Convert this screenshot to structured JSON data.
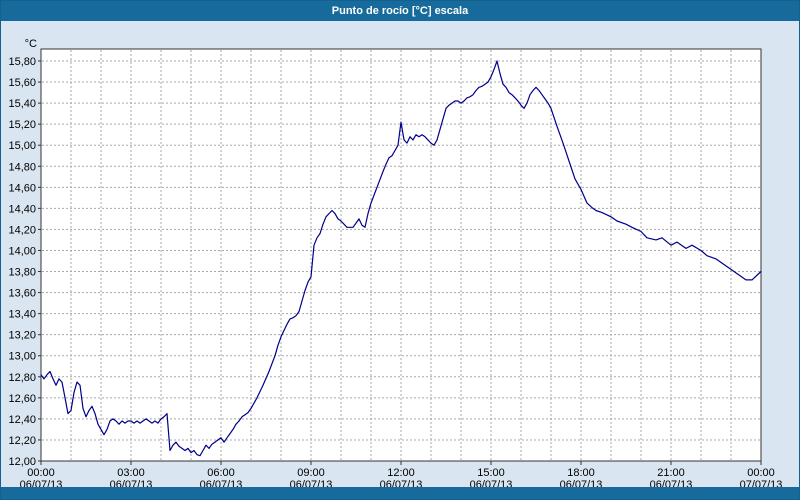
{
  "window": {
    "title": "Punto de rocío [°C] escala"
  },
  "colors": {
    "titlebar_bg": "#176b9c",
    "titlebar_text": "#ffffff",
    "chart_bg": "#d9e5f1",
    "plot_bg": "#ffffff",
    "grid": "#a8a8a8",
    "axis": "#333333",
    "series": "#00008b",
    "frame_border": "#14608f",
    "bottom_bar": "#176b9c"
  },
  "chart_data": {
    "type": "line",
    "title": "Punto de rocío [°C] escala",
    "ylabel": "°C",
    "xlabel": "",
    "ylim": [
      12.0,
      15.8
    ],
    "y_tick_step": 0.2,
    "y_tick_labels": [
      "12,00",
      "12,20",
      "12,40",
      "12,60",
      "12,80",
      "13,00",
      "13,20",
      "13,40",
      "13,60",
      "13,80",
      "14,00",
      "14,20",
      "14,40",
      "14,60",
      "14,80",
      "15,00",
      "15,20",
      "15,40",
      "15,60",
      "15,80"
    ],
    "xlim_hours": [
      0,
      24
    ],
    "grid": {
      "style": "dashed",
      "vertical_step_hours": 1,
      "horizontal_step": 0.2
    },
    "legend": "none",
    "x_ticks": [
      {
        "hour": 0,
        "time": "00:00",
        "date": "06/07/13"
      },
      {
        "hour": 3,
        "time": "03:00",
        "date": "06/07/13"
      },
      {
        "hour": 6,
        "time": "06:00",
        "date": "06/07/13"
      },
      {
        "hour": 9,
        "time": "09:00",
        "date": "06/07/13"
      },
      {
        "hour": 12,
        "time": "12:00",
        "date": "06/07/13"
      },
      {
        "hour": 15,
        "time": "15:00",
        "date": "06/07/13"
      },
      {
        "hour": 18,
        "time": "18:00",
        "date": "06/07/13"
      },
      {
        "hour": 21,
        "time": "21:00",
        "date": "06/07/13"
      },
      {
        "hour": 24,
        "time": "00:00",
        "date": "07/07/13"
      }
    ],
    "series": [
      {
        "name": "Punto de rocío",
        "color": "#00008b",
        "points": [
          [
            0.0,
            12.82
          ],
          [
            0.1,
            12.78
          ],
          [
            0.2,
            12.82
          ],
          [
            0.3,
            12.85
          ],
          [
            0.4,
            12.78
          ],
          [
            0.5,
            12.72
          ],
          [
            0.6,
            12.78
          ],
          [
            0.7,
            12.75
          ],
          [
            0.8,
            12.6
          ],
          [
            0.9,
            12.45
          ],
          [
            1.0,
            12.48
          ],
          [
            1.1,
            12.65
          ],
          [
            1.2,
            12.75
          ],
          [
            1.3,
            12.72
          ],
          [
            1.4,
            12.5
          ],
          [
            1.5,
            12.42
          ],
          [
            1.6,
            12.48
          ],
          [
            1.7,
            12.52
          ],
          [
            1.8,
            12.45
          ],
          [
            1.9,
            12.35
          ],
          [
            2.0,
            12.3
          ],
          [
            2.1,
            12.25
          ],
          [
            2.2,
            12.3
          ],
          [
            2.3,
            12.38
          ],
          [
            2.4,
            12.4
          ],
          [
            2.5,
            12.38
          ],
          [
            2.6,
            12.35
          ],
          [
            2.7,
            12.38
          ],
          [
            2.8,
            12.36
          ],
          [
            2.9,
            12.38
          ],
          [
            3.0,
            12.38
          ],
          [
            3.1,
            12.36
          ],
          [
            3.2,
            12.38
          ],
          [
            3.3,
            12.36
          ],
          [
            3.4,
            12.38
          ],
          [
            3.5,
            12.4
          ],
          [
            3.6,
            12.38
          ],
          [
            3.7,
            12.36
          ],
          [
            3.8,
            12.38
          ],
          [
            3.9,
            12.36
          ],
          [
            4.0,
            12.4
          ],
          [
            4.1,
            12.42
          ],
          [
            4.2,
            12.45
          ],
          [
            4.3,
            12.1
          ],
          [
            4.4,
            12.15
          ],
          [
            4.5,
            12.18
          ],
          [
            4.6,
            12.14
          ],
          [
            4.7,
            12.12
          ],
          [
            4.8,
            12.1
          ],
          [
            4.9,
            12.12
          ],
          [
            5.0,
            12.08
          ],
          [
            5.1,
            12.1
          ],
          [
            5.2,
            12.06
          ],
          [
            5.3,
            12.05
          ],
          [
            5.4,
            12.1
          ],
          [
            5.5,
            12.15
          ],
          [
            5.6,
            12.12
          ],
          [
            5.7,
            12.16
          ],
          [
            5.8,
            12.18
          ],
          [
            5.9,
            12.2
          ],
          [
            6.0,
            12.22
          ],
          [
            6.1,
            12.18
          ],
          [
            6.2,
            12.22
          ],
          [
            6.3,
            12.26
          ],
          [
            6.4,
            12.3
          ],
          [
            6.5,
            12.35
          ],
          [
            6.6,
            12.38
          ],
          [
            6.7,
            12.42
          ],
          [
            6.8,
            12.44
          ],
          [
            6.9,
            12.46
          ],
          [
            7.0,
            12.5
          ],
          [
            7.2,
            12.6
          ],
          [
            7.4,
            12.72
          ],
          [
            7.6,
            12.85
          ],
          [
            7.8,
            13.0
          ],
          [
            7.9,
            13.1
          ],
          [
            8.0,
            13.18
          ],
          [
            8.1,
            13.24
          ],
          [
            8.2,
            13.3
          ],
          [
            8.3,
            13.35
          ],
          [
            8.4,
            13.36
          ],
          [
            8.5,
            13.38
          ],
          [
            8.6,
            13.42
          ],
          [
            8.7,
            13.52
          ],
          [
            8.8,
            13.62
          ],
          [
            8.9,
            13.7
          ],
          [
            9.0,
            13.75
          ],
          [
            9.1,
            14.05
          ],
          [
            9.2,
            14.12
          ],
          [
            9.3,
            14.16
          ],
          [
            9.4,
            14.25
          ],
          [
            9.5,
            14.32
          ],
          [
            9.6,
            14.35
          ],
          [
            9.7,
            14.38
          ],
          [
            9.8,
            14.35
          ],
          [
            9.9,
            14.3
          ],
          [
            10.0,
            14.28
          ],
          [
            10.2,
            14.22
          ],
          [
            10.4,
            14.22
          ],
          [
            10.5,
            14.26
          ],
          [
            10.6,
            14.3
          ],
          [
            10.7,
            14.24
          ],
          [
            10.8,
            14.22
          ],
          [
            10.9,
            14.35
          ],
          [
            11.0,
            14.45
          ],
          [
            11.2,
            14.6
          ],
          [
            11.4,
            14.75
          ],
          [
            11.5,
            14.82
          ],
          [
            11.6,
            14.88
          ],
          [
            11.7,
            14.9
          ],
          [
            11.8,
            14.95
          ],
          [
            11.9,
            15.0
          ],
          [
            12.0,
            15.22
          ],
          [
            12.1,
            15.05
          ],
          [
            12.2,
            15.02
          ],
          [
            12.3,
            15.08
          ],
          [
            12.4,
            15.05
          ],
          [
            12.5,
            15.1
          ],
          [
            12.6,
            15.08
          ],
          [
            12.7,
            15.1
          ],
          [
            12.8,
            15.08
          ],
          [
            12.9,
            15.05
          ],
          [
            13.0,
            15.02
          ],
          [
            13.1,
            15.0
          ],
          [
            13.2,
            15.05
          ],
          [
            13.3,
            15.15
          ],
          [
            13.4,
            15.25
          ],
          [
            13.5,
            15.35
          ],
          [
            13.6,
            15.38
          ],
          [
            13.7,
            15.4
          ],
          [
            13.8,
            15.42
          ],
          [
            13.9,
            15.42
          ],
          [
            14.0,
            15.4
          ],
          [
            14.1,
            15.42
          ],
          [
            14.2,
            15.45
          ],
          [
            14.3,
            15.46
          ],
          [
            14.4,
            15.48
          ],
          [
            14.5,
            15.52
          ],
          [
            14.6,
            15.55
          ],
          [
            14.7,
            15.56
          ],
          [
            14.8,
            15.58
          ],
          [
            14.9,
            15.6
          ],
          [
            15.0,
            15.65
          ],
          [
            15.1,
            15.72
          ],
          [
            15.2,
            15.8
          ],
          [
            15.3,
            15.68
          ],
          [
            15.4,
            15.58
          ],
          [
            15.5,
            15.55
          ],
          [
            15.6,
            15.5
          ],
          [
            15.7,
            15.48
          ],
          [
            15.8,
            15.45
          ],
          [
            15.9,
            15.42
          ],
          [
            16.0,
            15.38
          ],
          [
            16.1,
            15.35
          ],
          [
            16.2,
            15.4
          ],
          [
            16.3,
            15.48
          ],
          [
            16.4,
            15.52
          ],
          [
            16.5,
            15.55
          ],
          [
            16.6,
            15.52
          ],
          [
            16.7,
            15.48
          ],
          [
            16.8,
            15.44
          ],
          [
            16.9,
            15.4
          ],
          [
            17.0,
            15.35
          ],
          [
            17.2,
            15.18
          ],
          [
            17.4,
            15.02
          ],
          [
            17.6,
            14.85
          ],
          [
            17.8,
            14.68
          ],
          [
            18.0,
            14.58
          ],
          [
            18.2,
            14.45
          ],
          [
            18.4,
            14.4
          ],
          [
            18.5,
            14.38
          ],
          [
            18.7,
            14.36
          ],
          [
            19.0,
            14.32
          ],
          [
            19.2,
            14.28
          ],
          [
            19.5,
            14.25
          ],
          [
            19.7,
            14.22
          ],
          [
            20.0,
            14.18
          ],
          [
            20.2,
            14.12
          ],
          [
            20.5,
            14.1
          ],
          [
            20.7,
            14.12
          ],
          [
            21.0,
            14.05
          ],
          [
            21.2,
            14.08
          ],
          [
            21.5,
            14.02
          ],
          [
            21.7,
            14.05
          ],
          [
            22.0,
            14.0
          ],
          [
            22.2,
            13.95
          ],
          [
            22.5,
            13.92
          ],
          [
            22.7,
            13.88
          ],
          [
            23.0,
            13.82
          ],
          [
            23.2,
            13.78
          ],
          [
            23.5,
            13.72
          ],
          [
            23.7,
            13.72
          ],
          [
            24.0,
            13.8
          ]
        ]
      }
    ]
  }
}
